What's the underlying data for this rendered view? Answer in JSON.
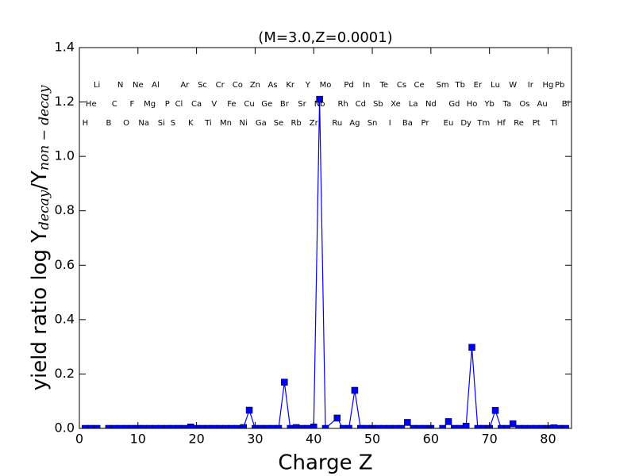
{
  "chart_data": {
    "type": "line",
    "title": "(M=3.0,Z=0.0001)",
    "xlabel": "Charge Z",
    "ylabel_parts": [
      "yield ratio log Y",
      "decay",
      "/Y",
      "non − decay"
    ],
    "xlim": [
      0,
      84
    ],
    "ylim": [
      0,
      1.4
    ],
    "xticks": [
      0,
      10,
      20,
      30,
      40,
      50,
      60,
      70,
      80
    ],
    "yticks": [
      {
        "value": 0,
        "label": "0.0"
      },
      0.2,
      0.4,
      0.6,
      0.8,
      {
        "value": 1,
        "label": "1.0"
      },
      1.2,
      1.4
    ],
    "series": [
      {
        "color": "#0000ff",
        "x": [
          1,
          2,
          3,
          5,
          6,
          7,
          8,
          9,
          10,
          11,
          12,
          13,
          14,
          15,
          16,
          17,
          18,
          19,
          20,
          21,
          22,
          23,
          24,
          25,
          26,
          27,
          28,
          29,
          30,
          31,
          32,
          33,
          34,
          35,
          36,
          37,
          38,
          39,
          40,
          41,
          42,
          44,
          45,
          46,
          47,
          48,
          49,
          50,
          51,
          52,
          53,
          54,
          55,
          56,
          57,
          58,
          59,
          60,
          62,
          63,
          64,
          65,
          66,
          67,
          68,
          69,
          70,
          71,
          72,
          73,
          74,
          75,
          76,
          77,
          78,
          79,
          80,
          81,
          82,
          83
        ],
        "values": [
          0,
          0,
          0,
          0,
          0,
          0,
          0,
          0,
          0,
          0,
          0,
          0,
          0,
          0,
          0,
          0,
          0,
          0.005,
          0,
          0,
          0,
          0,
          0,
          0,
          0,
          0,
          0.003,
          0.067,
          0,
          0,
          0,
          0,
          0,
          0.17,
          0,
          0.003,
          0,
          0,
          0.005,
          1.21,
          0,
          0.038,
          0,
          0,
          0.14,
          0,
          0,
          0,
          0,
          0,
          0,
          0,
          0,
          0.022,
          0,
          0,
          0,
          0,
          0,
          0.025,
          0,
          0,
          0.008,
          0.298,
          0,
          0,
          0,
          0.066,
          0,
          0,
          0.017,
          0,
          0,
          0,
          0,
          0,
          0,
          0.002,
          0,
          0
        ]
      }
    ],
    "elements": [
      {
        "label": "H",
        "x": 1,
        "y": 1.123
      },
      {
        "label": "He",
        "x": 2,
        "y": 1.193
      },
      {
        "label": "Li",
        "x": 3,
        "y": 1.263
      },
      {
        "label": "B",
        "x": 5,
        "y": 1.123
      },
      {
        "label": "C",
        "x": 6,
        "y": 1.193
      },
      {
        "label": "N",
        "x": 7,
        "y": 1.263
      },
      {
        "label": "O",
        "x": 8,
        "y": 1.123
      },
      {
        "label": "F",
        "x": 9,
        "y": 1.193
      },
      {
        "label": "Ne",
        "x": 10,
        "y": 1.263
      },
      {
        "label": "Na",
        "x": 11,
        "y": 1.123
      },
      {
        "label": "Mg",
        "x": 12,
        "y": 1.193
      },
      {
        "label": "Al",
        "x": 13,
        "y": 1.263
      },
      {
        "label": "Si",
        "x": 14,
        "y": 1.123
      },
      {
        "label": "P",
        "x": 15,
        "y": 1.193
      },
      {
        "label": "S",
        "x": 16,
        "y": 1.123
      },
      {
        "label": "Cl",
        "x": 17,
        "y": 1.193
      },
      {
        "label": "Ar",
        "x": 18,
        "y": 1.263
      },
      {
        "label": "K",
        "x": 19,
        "y": 1.123
      },
      {
        "label": "Ca",
        "x": 20,
        "y": 1.193
      },
      {
        "label": "Sc",
        "x": 21,
        "y": 1.263
      },
      {
        "label": "Ti",
        "x": 22,
        "y": 1.123
      },
      {
        "label": "V",
        "x": 23,
        "y": 1.193
      },
      {
        "label": "Cr",
        "x": 24,
        "y": 1.263
      },
      {
        "label": "Mn",
        "x": 25,
        "y": 1.123
      },
      {
        "label": "Fe",
        "x": 26,
        "y": 1.193
      },
      {
        "label": "Co",
        "x": 27,
        "y": 1.263
      },
      {
        "label": "Ni",
        "x": 28,
        "y": 1.123
      },
      {
        "label": "Cu",
        "x": 29,
        "y": 1.193
      },
      {
        "label": "Zn",
        "x": 30,
        "y": 1.263
      },
      {
        "label": "Ga",
        "x": 31,
        "y": 1.123
      },
      {
        "label": "Ge",
        "x": 32,
        "y": 1.193
      },
      {
        "label": "As",
        "x": 33,
        "y": 1.263
      },
      {
        "label": "Se",
        "x": 34,
        "y": 1.123
      },
      {
        "label": "Br",
        "x": 35,
        "y": 1.193
      },
      {
        "label": "Kr",
        "x": 36,
        "y": 1.263
      },
      {
        "label": "Rb",
        "x": 37,
        "y": 1.123
      },
      {
        "label": "Sr",
        "x": 38,
        "y": 1.193
      },
      {
        "label": "Y",
        "x": 39,
        "y": 1.263
      },
      {
        "label": "Zr",
        "x": 40,
        "y": 1.123
      },
      {
        "label": "Nb",
        "x": 41,
        "y": 1.193
      },
      {
        "label": "Mo",
        "x": 42,
        "y": 1.263
      },
      {
        "label": "Ru",
        "x": 44,
        "y": 1.123
      },
      {
        "label": "Rh",
        "x": 45,
        "y": 1.193
      },
      {
        "label": "Pd",
        "x": 46,
        "y": 1.263
      },
      {
        "label": "Ag",
        "x": 47,
        "y": 1.123
      },
      {
        "label": "Cd",
        "x": 48,
        "y": 1.193
      },
      {
        "label": "In",
        "x": 49,
        "y": 1.263
      },
      {
        "label": "Sn",
        "x": 50,
        "y": 1.123
      },
      {
        "label": "Sb",
        "x": 51,
        "y": 1.193
      },
      {
        "label": "Te",
        "x": 52,
        "y": 1.263
      },
      {
        "label": "I",
        "x": 53,
        "y": 1.123
      },
      {
        "label": "Xe",
        "x": 54,
        "y": 1.193
      },
      {
        "label": "Cs",
        "x": 55,
        "y": 1.263
      },
      {
        "label": "Ba",
        "x": 56,
        "y": 1.123
      },
      {
        "label": "La",
        "x": 57,
        "y": 1.193
      },
      {
        "label": "Ce",
        "x": 58,
        "y": 1.263
      },
      {
        "label": "Pr",
        "x": 59,
        "y": 1.123
      },
      {
        "label": "Nd",
        "x": 60,
        "y": 1.193
      },
      {
        "label": "Sm",
        "x": 62,
        "y": 1.263
      },
      {
        "label": "Eu",
        "x": 63,
        "y": 1.123
      },
      {
        "label": "Gd",
        "x": 64,
        "y": 1.193
      },
      {
        "label": "Tb",
        "x": 65,
        "y": 1.263
      },
      {
        "label": "Dy",
        "x": 66,
        "y": 1.123
      },
      {
        "label": "Ho",
        "x": 67,
        "y": 1.193
      },
      {
        "label": "Er",
        "x": 68,
        "y": 1.263
      },
      {
        "label": "Tm",
        "x": 69,
        "y": 1.123
      },
      {
        "label": "Yb",
        "x": 70,
        "y": 1.193
      },
      {
        "label": "Lu",
        "x": 71,
        "y": 1.263
      },
      {
        "label": "Hf",
        "x": 72,
        "y": 1.123
      },
      {
        "label": "Ta",
        "x": 73,
        "y": 1.193
      },
      {
        "label": "W",
        "x": 74,
        "y": 1.263
      },
      {
        "label": "Re",
        "x": 75,
        "y": 1.123
      },
      {
        "label": "Os",
        "x": 76,
        "y": 1.193
      },
      {
        "label": "Ir",
        "x": 77,
        "y": 1.263
      },
      {
        "label": "Pt",
        "x": 78,
        "y": 1.123
      },
      {
        "label": "Au",
        "x": 79,
        "y": 1.193
      },
      {
        "label": "Hg",
        "x": 80,
        "y": 1.263
      },
      {
        "label": "Tl",
        "x": 81,
        "y": 1.123
      },
      {
        "label": "Pb",
        "x": 82,
        "y": 1.263
      },
      {
        "label": "Bi",
        "x": 83,
        "y": 1.193
      }
    ]
  }
}
